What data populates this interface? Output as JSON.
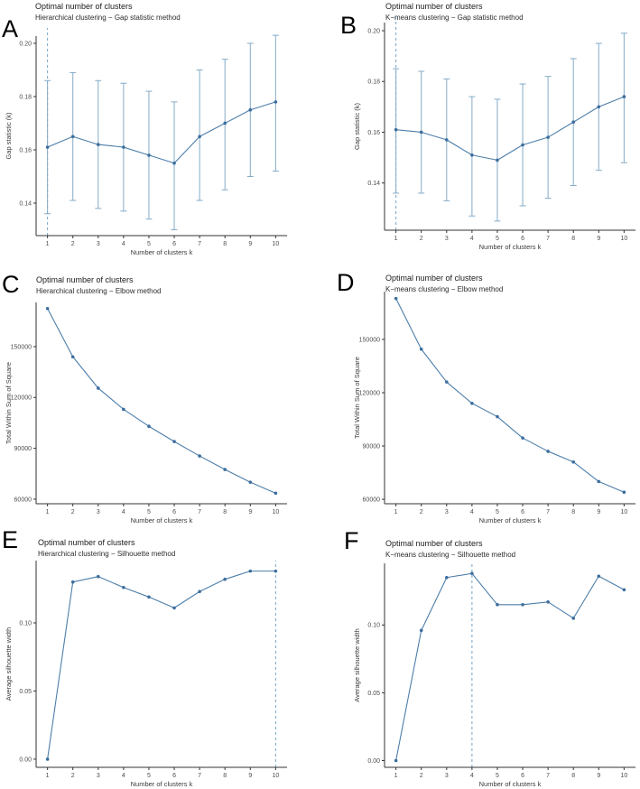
{
  "figure": {
    "background": "#ffffff",
    "colors": {
      "line": "#4d7ea9",
      "point": "#3c6e9e",
      "errorbar": "#85abc7",
      "dashed_line": "#72a3c6",
      "axis": "#333333",
      "tick_text": "#4d4d4d",
      "label_text": "#3a3a3a"
    }
  },
  "chart_data": [
    {
      "type": "line",
      "letter": "A",
      "title": "Optimal number of clusters",
      "subtitle": "Hierarchical clustering − Gap statistic method",
      "xlabel": "Number of clusters k",
      "ylabel": "Gap statistic (k)",
      "x": [
        1,
        2,
        3,
        4,
        5,
        6,
        7,
        8,
        9,
        10
      ],
      "values": [
        0.161,
        0.165,
        0.162,
        0.161,
        0.158,
        0.155,
        0.165,
        0.17,
        0.175,
        0.178
      ],
      "err_low": [
        0.136,
        0.141,
        0.138,
        0.137,
        0.134,
        0.13,
        0.141,
        0.145,
        0.15,
        0.152
      ],
      "err_high": [
        0.186,
        0.189,
        0.186,
        0.185,
        0.182,
        0.178,
        0.19,
        0.194,
        0.2,
        0.203
      ],
      "vline_x": 1,
      "yticks": [
        0.14,
        0.16,
        0.18,
        0.2
      ],
      "ytick_labels": [
        "0.14",
        "0.16",
        "0.18",
        "0.20"
      ],
      "ylim": [
        0.1278,
        0.2027
      ],
      "grid": false,
      "legend": null
    },
    {
      "type": "line",
      "letter": "B",
      "title": "Optimal number of clusters",
      "subtitle": "K−means clustering − Gap statistic method",
      "xlabel": "Number of clusters k",
      "ylabel": "Gap statistic (k)",
      "x": [
        1,
        2,
        3,
        4,
        5,
        6,
        7,
        8,
        9,
        10
      ],
      "values": [
        0.161,
        0.16,
        0.157,
        0.151,
        0.149,
        0.155,
        0.158,
        0.164,
        0.17,
        0.174
      ],
      "err_low": [
        0.136,
        0.136,
        0.133,
        0.127,
        0.125,
        0.131,
        0.134,
        0.139,
        0.145,
        0.148
      ],
      "err_high": [
        0.185,
        0.184,
        0.181,
        0.174,
        0.173,
        0.179,
        0.182,
        0.189,
        0.195,
        0.199
      ],
      "vline_x": 1,
      "yticks": [
        0.14,
        0.16,
        0.18,
        0.2
      ],
      "ytick_labels": [
        "0.14",
        "0.16",
        "0.18",
        "0.20"
      ],
      "ylim": [
        0.1214,
        0.2032
      ],
      "grid": false,
      "legend": null
    },
    {
      "type": "line",
      "letter": "C",
      "title": "Optimal number of clusters",
      "subtitle": "Hierarchical clustering − Elbow method",
      "xlabel": "Number of clusters k",
      "ylabel": "Total Within Sum of Square",
      "x": [
        1,
        2,
        3,
        4,
        5,
        6,
        7,
        8,
        9,
        10
      ],
      "values": [
        172500,
        144000,
        125500,
        113000,
        103000,
        94000,
        85500,
        77500,
        70000,
        63500
      ],
      "err_low": null,
      "err_high": null,
      "vline_x": null,
      "yticks": [
        60000,
        90000,
        120000,
        150000
      ],
      "ytick_labels": [
        "60000",
        "90000",
        "120000",
        "150000"
      ],
      "ylim": [
        57300,
        176100
      ],
      "grid": false,
      "legend": null
    },
    {
      "type": "line",
      "letter": "D",
      "title": "Optimal number of clusters",
      "subtitle": "K−means clustering − Elbow method",
      "xlabel": "Number of clusters k",
      "ylabel": "Total Within Sum of Square",
      "x": [
        1,
        2,
        3,
        4,
        5,
        6,
        7,
        8,
        9,
        10
      ],
      "values": [
        173000,
        144500,
        126000,
        114000,
        106500,
        94500,
        87000,
        81000,
        70000,
        64000
      ],
      "err_low": null,
      "err_high": null,
      "vline_x": null,
      "yticks": [
        60000,
        90000,
        120000,
        150000
      ],
      "ytick_labels": [
        "60000",
        "90000",
        "120000",
        "150000"
      ],
      "ylim": [
        57500,
        176900
      ],
      "grid": false,
      "legend": null
    },
    {
      "type": "line",
      "letter": "E",
      "title": "Optimal number of clusters",
      "subtitle": "Hierarchical clustering − Silhouette method",
      "xlabel": "Number of clusters k",
      "ylabel": "Average silhouette width",
      "x": [
        1,
        2,
        3,
        4,
        5,
        6,
        7,
        8,
        9,
        10
      ],
      "values": [
        0.0,
        0.13,
        0.134,
        0.126,
        0.119,
        0.111,
        0.123,
        0.132,
        0.138,
        0.138
      ],
      "err_low": null,
      "err_high": null,
      "vline_x": 10,
      "yticks": [
        0.0,
        0.05,
        0.1
      ],
      "ytick_labels": [
        "0.00",
        "0.05",
        "0.10"
      ],
      "ylim": [
        -0.006,
        0.1457
      ],
      "grid": false,
      "legend": null
    },
    {
      "type": "line",
      "letter": "F",
      "title": "Optimal number of clusters",
      "subtitle": "K−means clustering − Silhouette method",
      "xlabel": "Number of clusters k",
      "ylabel": "Average silhouette width",
      "x": [
        1,
        2,
        3,
        4,
        5,
        6,
        7,
        8,
        9,
        10
      ],
      "values": [
        0.0,
        0.096,
        0.135,
        0.138,
        0.115,
        0.115,
        0.117,
        0.105,
        0.136,
        0.126
      ],
      "err_low": null,
      "err_high": null,
      "vline_x": 4,
      "yticks": [
        0.0,
        0.05,
        0.1
      ],
      "ytick_labels": [
        "0.00",
        "0.05",
        "0.10"
      ],
      "ylim": [
        -0.005,
        0.1455
      ],
      "grid": false,
      "legend": null
    }
  ]
}
